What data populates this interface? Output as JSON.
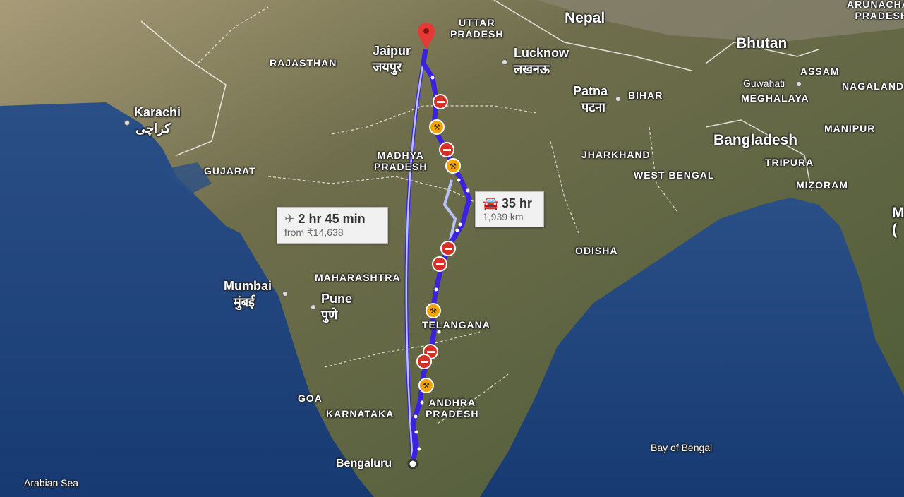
{
  "map_type": "satellite",
  "colors": {
    "route_primary": "#3b22e0",
    "route_alternate": "#9aa8ff",
    "closure": "#d93025",
    "roadwork": "#f4a400",
    "destination_pin": "#e53935"
  },
  "countries": {
    "nepal": "Nepal",
    "bhutan": "Bhutan",
    "bangladesh": "Bangladesh"
  },
  "states": {
    "uttar_pradesh": "UTTAR\nPRADESH",
    "rajasthan": "RAJASTHAN",
    "gujarat": "GUJARAT",
    "madhya_pradesh": "MADHYA\nPRADESH",
    "maharashtra": "MAHARASHTRA",
    "telangana": "TELANGANA",
    "andhra_pradesh": "ANDHRA\nPRADESH",
    "karnataka": "KARNATAKA",
    "goa": "GOA",
    "odisha": "ODISHA",
    "jharkhand": "JHARKHAND",
    "west_bengal": "WEST BENGAL",
    "bihar": "BIHAR",
    "assam": "ASSAM",
    "meghalaya": "MEGHALAYA",
    "nagaland": "NAGALAND",
    "manipur": "MANIPUR",
    "tripura": "TRIPURA",
    "mizoram": "MIZORAM",
    "arunachal_pradesh": "ARUNACHAL\nPRADESH"
  },
  "cities": {
    "jaipur": "Jaipur",
    "jaipur_local": "जयपुर",
    "lucknow": "Lucknow",
    "lucknow_local": "लखनऊ",
    "patna": "Patna",
    "patna_local": "पटना",
    "karachi": "Karachi",
    "karachi_local": "کراچی",
    "mumbai": "Mumbai",
    "mumbai_local": "मुंबई",
    "pune": "Pune",
    "pune_local": "पुणे",
    "bengaluru": "Bengaluru",
    "guwahati": "Guwahati"
  },
  "water": {
    "arabian_sea": "Arabian Sea",
    "bay_of_bengal": "Bay of Bengal"
  },
  "edge_label": "M\n(",
  "route": {
    "flight": {
      "icon": "airplane-icon",
      "duration": "2 hr 45 min",
      "price": "from ₹14,638"
    },
    "drive": {
      "icon": "car-icon",
      "duration": "35 hr",
      "distance": "1,939 km"
    },
    "origin": "Bengaluru",
    "destination": "Jaipur"
  }
}
